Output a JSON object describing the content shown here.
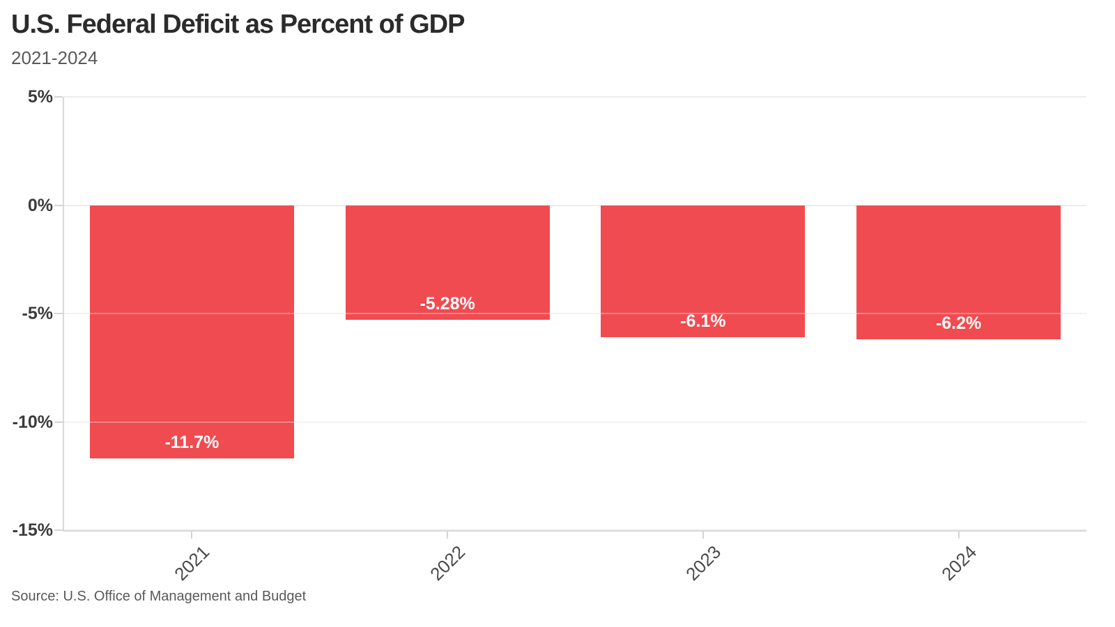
{
  "header": {
    "title": "U.S. Federal Deficit as Percent of GDP",
    "subtitle": "2021-2024"
  },
  "footer": {
    "source": "Source: U.S. Office of Management and Budget"
  },
  "colors": {
    "bar": "#f04b50",
    "bar_label": "#ffffff",
    "grid": "#ececec",
    "axis": "#d9d9d9",
    "tick": "#d4d4d4",
    "title": "#2b2b2b",
    "subtitle": "#595959",
    "y_label": "#3c3c3c",
    "x_label": "#4a4a4a",
    "source": "#595959"
  },
  "chart_data": {
    "type": "bar",
    "title": "U.S. Federal Deficit as Percent of GDP",
    "subtitle": "2021-2024",
    "source": "Source: U.S. Office of Management and Budget",
    "categories": [
      "2021",
      "2022",
      "2023",
      "2024"
    ],
    "values": [
      -11.7,
      -5.28,
      -6.1,
      -6.2
    ],
    "value_labels": [
      "-11.7%",
      "-5.28%",
      "-6.1%",
      "-6.2%"
    ],
    "xlabel": "",
    "ylabel": "",
    "ylim": [
      -15,
      5
    ],
    "y_ticks": [
      {
        "value": 5,
        "label": "5%"
      },
      {
        "value": 0,
        "label": "0%"
      },
      {
        "value": -5,
        "label": "-5%"
      },
      {
        "value": -10,
        "label": "-10%"
      },
      {
        "value": -15,
        "label": "-15%"
      }
    ],
    "grid": true,
    "legend": false,
    "bar_color": "#f04b50",
    "bar_label_color": "#ffffff",
    "bar_label_position": "inside-bottom",
    "x_label_rotation": -45
  }
}
